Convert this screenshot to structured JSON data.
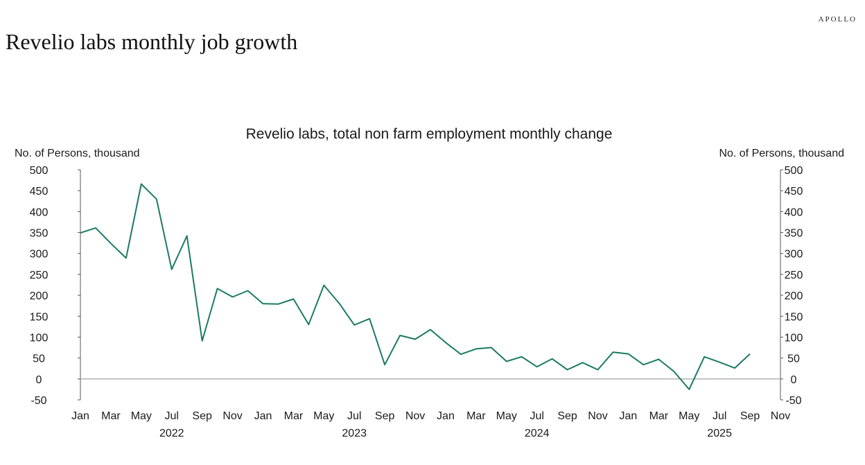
{
  "brand": "APOLLO",
  "page_title": "Revelio labs monthly job growth",
  "chart_data": {
    "type": "line",
    "title": "Revelio labs, total non farm employment monthly change",
    "ylabel_left": "No. of Persons, thousand",
    "ylabel_right": "No. of Persons, thousand",
    "ylim": [
      -50,
      500
    ],
    "yticks": [
      -50,
      0,
      50,
      100,
      150,
      200,
      250,
      300,
      350,
      400,
      450,
      500
    ],
    "x_start": "2022-01",
    "x_end": "2025-11",
    "x_tick_labels": [
      "Jan",
      "Mar",
      "May",
      "Jul",
      "Sep",
      "Nov",
      "Jan",
      "Mar",
      "May",
      "Jul",
      "Sep",
      "Nov",
      "Jan",
      "Mar",
      "May",
      "Jul",
      "Sep",
      "Nov",
      "Jan",
      "Mar",
      "May",
      "Jul",
      "Sep",
      "Nov"
    ],
    "year_labels": [
      "2022",
      "2023",
      "2024",
      "2025"
    ],
    "line_color": "#1a7a63",
    "zero_line_color": "#999999",
    "series": [
      {
        "x": [
          "2022-01",
          "2022-02",
          "2022-03",
          "2022-04",
          "2022-05",
          "2022-06",
          "2022-07",
          "2022-08",
          "2022-09",
          "2022-10",
          "2022-11",
          "2022-12",
          "2023-01",
          "2023-02",
          "2023-03",
          "2023-04",
          "2023-05",
          "2023-06",
          "2023-07",
          "2023-08",
          "2023-09",
          "2023-10",
          "2023-11",
          "2023-12",
          "2024-01",
          "2024-02",
          "2024-03",
          "2024-04",
          "2024-05",
          "2024-06",
          "2024-07",
          "2024-08",
          "2024-09",
          "2024-10",
          "2024-11",
          "2024-12",
          "2025-01",
          "2025-02",
          "2025-03",
          "2025-04",
          "2025-05",
          "2025-06",
          "2025-07",
          "2025-08",
          "2025-09"
        ],
        "values": [
          349,
          361,
          324,
          289,
          466,
          430,
          262,
          342,
          91,
          216,
          196,
          211,
          180,
          179,
          191,
          130,
          224,
          181,
          129,
          144,
          34,
          104,
          95,
          118,
          87,
          59,
          72,
          75,
          42,
          53,
          29,
          48,
          22,
          39,
          22,
          64,
          60,
          34,
          47,
          18,
          -25,
          53,
          40,
          26,
          60
        ]
      }
    ]
  }
}
